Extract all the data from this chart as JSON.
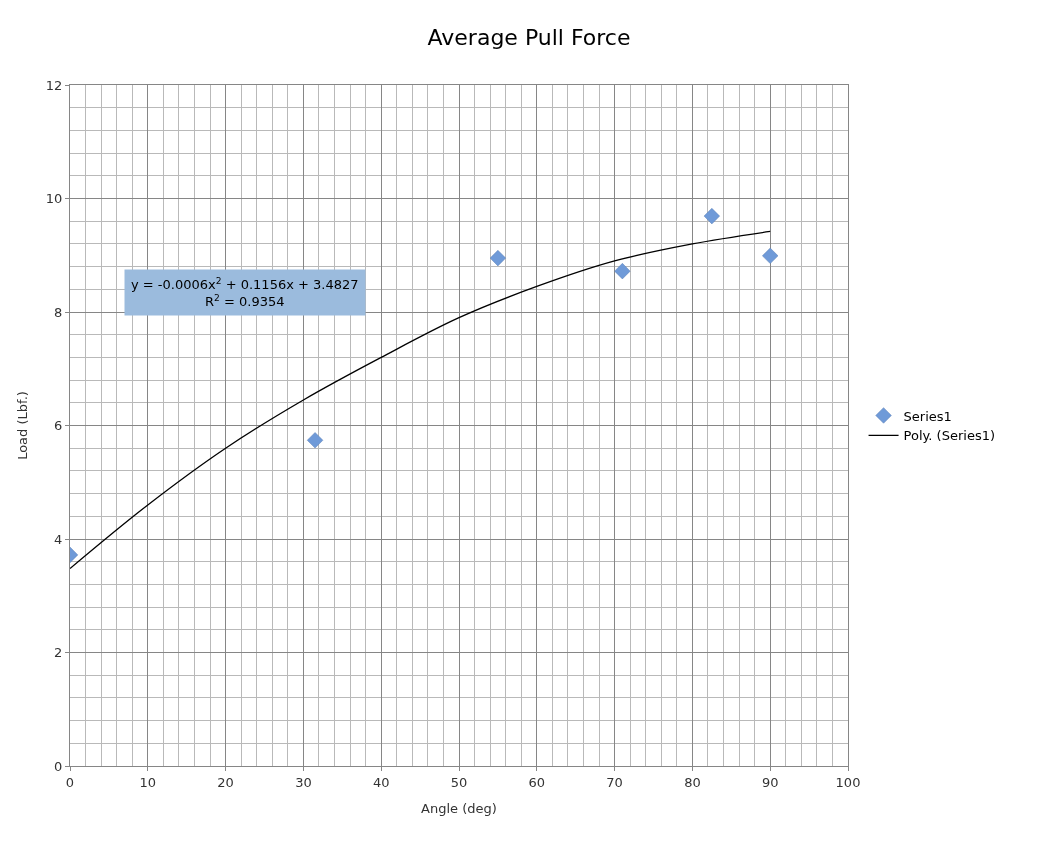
{
  "chart_data": {
    "type": "scatter",
    "title": "Average Pull Force",
    "xlabel": "Angle (deg)",
    "ylabel": "Load (Lbf.)",
    "series": [
      {
        "name": "Series1",
        "color": "#6f9ad8",
        "marker": "diamond",
        "x": [
          0,
          31.5,
          55,
          71,
          82.5,
          90
        ],
        "values": [
          3.72,
          5.74,
          8.95,
          8.72,
          9.69,
          8.99
        ]
      },
      {
        "name": "Poly. (Series1)",
        "type": "line",
        "color": "#000000",
        "marker": "none",
        "line_style": "solid",
        "x": [
          0,
          10,
          20,
          30,
          40,
          50,
          60,
          70,
          80,
          90
        ],
        "values": [
          3.48,
          4.6,
          5.6,
          6.45,
          7.2,
          7.9,
          8.45,
          8.9,
          9.2,
          9.42
        ]
      }
    ],
    "annotations": [
      "y = -0.0006x$^{2}$ + 0.1156x + 3.4827\nR$^{2}$ = 0.9354"
    ],
    "xlim": [
      0,
      100
    ],
    "xticks": [
      0,
      10,
      20,
      30,
      40,
      50,
      60,
      70,
      80,
      90,
      100
    ],
    "ylim": [
      0,
      12
    ],
    "yticks": [
      0,
      2,
      4,
      6,
      8,
      10,
      12
    ],
    "grid": true,
    "legend": "right"
  }
}
